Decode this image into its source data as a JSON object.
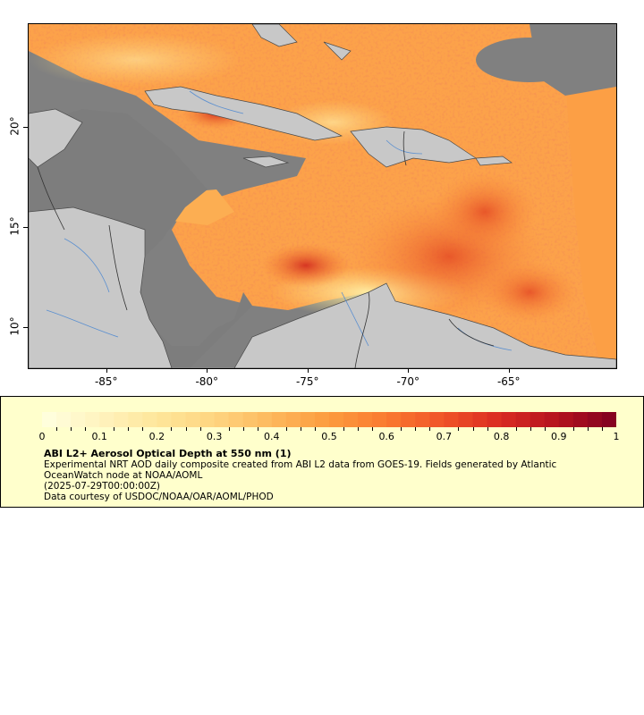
{
  "map": {
    "x_axis": {
      "ticks": [
        {
          "value": -85,
          "label": "-85°"
        },
        {
          "value": -80,
          "label": "-80°"
        },
        {
          "value": -75,
          "label": "-75°"
        },
        {
          "value": -70,
          "label": "-70°"
        },
        {
          "value": -65,
          "label": "-65°"
        }
      ],
      "range": [
        -88.9,
        -59.7
      ]
    },
    "y_axis": {
      "ticks": [
        {
          "value": 10,
          "label": "10°"
        },
        {
          "value": 15,
          "label": "15°"
        },
        {
          "value": 20,
          "label": "20°"
        }
      ],
      "range": [
        8.0,
        25.2
      ]
    },
    "colors": {
      "land": "#c8c8c8",
      "missing": "#808080",
      "rivers": "#5a8fd0",
      "borders": "#333333"
    }
  },
  "legend": {
    "colorbar": {
      "min": 0,
      "max": 1,
      "labels": [
        "0",
        "0.1",
        "0.2",
        "0.3",
        "0.4",
        "0.5",
        "0.6",
        "0.7",
        "0.8",
        "0.9",
        "1"
      ],
      "stops": [
        "#ffffe0",
        "#fff3bf",
        "#fee69a",
        "#fed580",
        "#fdb85c",
        "#fc9b3e",
        "#fa7a30",
        "#f05328",
        "#d92a22",
        "#b3121f",
        "#7f0020"
      ]
    },
    "title": "ABI L2+ Aerosol Optical Depth at 550 nm (1)",
    "description": "Experimental NRT AOD daily composite created from ABI L2 data from GOES-19. Fields generated by Atlantic OceanWatch node at NOAA/AOML",
    "time": "(2025-07-29T00:00:00Z)",
    "credit": "Data courtesy of USDOC/NOAA/OAR/AOML/PHOD",
    "background": "#ffffcc"
  }
}
